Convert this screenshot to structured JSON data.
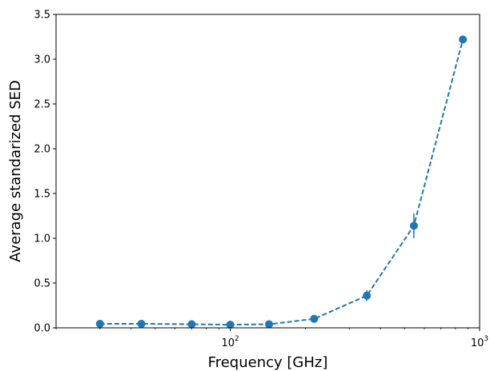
{
  "chart_data": {
    "type": "line",
    "xlabel": "Frequency [GHz]",
    "ylabel": "Average standarized SED",
    "xscale": "log",
    "xlim": [
      20,
      1000
    ],
    "ylim": [
      0,
      3.5
    ],
    "grid": false,
    "line_style": "dashed",
    "marker": "circle",
    "color": "#1f77b4",
    "x_ticks": [
      {
        "value": 100,
        "base": "10",
        "exp": "2"
      },
      {
        "value": 1000,
        "base": "10",
        "exp": "3"
      }
    ],
    "y_ticks": [
      "0.0",
      "0.5",
      "1.0",
      "1.5",
      "2.0",
      "2.5",
      "3.0",
      "3.5"
    ],
    "series": [
      {
        "points": [
          {
            "x": 30,
            "y": 0.045,
            "err": 0.02
          },
          {
            "x": 44,
            "y": 0.045,
            "err": 0.015
          },
          {
            "x": 70,
            "y": 0.04,
            "err": 0.01
          },
          {
            "x": 100,
            "y": 0.035,
            "err": 0.01
          },
          {
            "x": 143,
            "y": 0.04,
            "err": 0.01
          },
          {
            "x": 217,
            "y": 0.1,
            "err": 0.02
          },
          {
            "x": 353,
            "y": 0.36,
            "err": 0.06
          },
          {
            "x": 545,
            "y": 1.14,
            "err": 0.14
          },
          {
            "x": 857,
            "y": 3.22,
            "err": 0.03
          }
        ]
      }
    ]
  }
}
